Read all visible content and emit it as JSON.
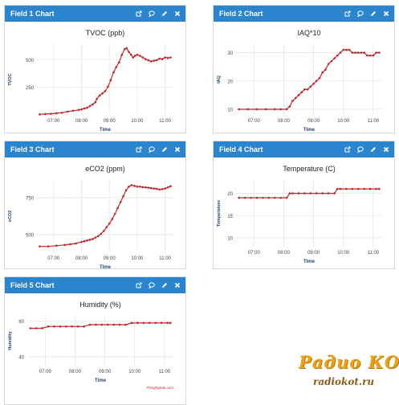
{
  "widgets": [
    {
      "header": "Field 1 Chart"
    },
    {
      "header": "Field 2 Chart"
    },
    {
      "header": "Field 3 Chart"
    },
    {
      "header": "Field 4 Chart"
    },
    {
      "header": "Field 5 Chart"
    }
  ],
  "icons": [
    "external-link-icon",
    "comment-icon",
    "pencil-icon",
    "close-icon"
  ],
  "colors": {
    "header": "#2a84ce",
    "series": "#c0262b",
    "credit": "#c0262b",
    "grid": "#e6e6e6"
  },
  "chart_data": [
    {
      "type": "line",
      "title": "TVOC (ppb)",
      "xlabel": "Time",
      "ylabel": "TVOC",
      "credit": "ThingSpeak.com",
      "ylim": [
        0,
        640
      ],
      "yticks": [
        {
          "v": 250,
          "label": "250"
        },
        {
          "v": 500,
          "label": "500"
        }
      ],
      "xlim": [
        6.4,
        11.3
      ],
      "xticks": [
        {
          "v": 7,
          "label": "07:00"
        },
        {
          "v": 8,
          "label": "08:00"
        },
        {
          "v": 9,
          "label": "09:00"
        },
        {
          "v": 10,
          "label": "10:00"
        },
        {
          "v": 11,
          "label": "11:00"
        }
      ],
      "x": [
        6.5,
        6.7,
        6.9,
        7.1,
        7.3,
        7.5,
        7.7,
        7.9,
        8.0,
        8.1,
        8.2,
        8.3,
        8.4,
        8.5,
        8.55,
        8.65,
        8.75,
        8.85,
        8.95,
        9.05,
        9.15,
        9.25,
        9.35,
        9.45,
        9.55,
        9.62,
        9.7,
        9.78,
        9.85,
        9.92,
        10.0,
        10.1,
        10.2,
        10.3,
        10.4,
        10.5,
        10.6,
        10.7,
        10.8,
        10.9,
        11.0,
        11.1,
        11.2
      ],
      "values": [
        5,
        8,
        10,
        15,
        20,
        30,
        38,
        45,
        50,
        58,
        65,
        80,
        95,
        115,
        145,
        175,
        195,
        215,
        255,
        315,
        385,
        435,
        475,
        545,
        595,
        605,
        570,
        545,
        520,
        535,
        545,
        535,
        520,
        505,
        495,
        485,
        490,
        495,
        510,
        505,
        520,
        515,
        520
      ]
    },
    {
      "type": "line",
      "title": "IAQ*10",
      "xlabel": "Time",
      "ylabel": "IAQ",
      "credit": "ThingSpeak.com",
      "ylim": [
        8,
        33
      ],
      "yticks": [
        {
          "v": 10,
          "label": "10"
        },
        {
          "v": 20,
          "label": "20"
        },
        {
          "v": 30,
          "label": "30"
        }
      ],
      "xlim": [
        6.4,
        11.3
      ],
      "xticks": [
        {
          "v": 7,
          "label": "07:00"
        },
        {
          "v": 8,
          "label": "08:00"
        },
        {
          "v": 9,
          "label": "09:00"
        },
        {
          "v": 10,
          "label": "10:00"
        },
        {
          "v": 11,
          "label": "11:00"
        }
      ],
      "x": [
        6.5,
        6.8,
        7.1,
        7.4,
        7.7,
        7.9,
        8.1,
        8.2,
        8.3,
        8.4,
        8.5,
        8.6,
        8.7,
        8.8,
        8.9,
        9.0,
        9.1,
        9.2,
        9.3,
        9.4,
        9.5,
        9.6,
        9.7,
        9.8,
        9.9,
        10.0,
        10.1,
        10.2,
        10.3,
        10.4,
        10.5,
        10.6,
        10.7,
        10.8,
        10.9,
        11.0,
        11.1,
        11.2
      ],
      "values": [
        10,
        10,
        10,
        10,
        10,
        10,
        10,
        11,
        13,
        14,
        15,
        16,
        17,
        17,
        18,
        19,
        20,
        21,
        23,
        24,
        26,
        27,
        28,
        29,
        30,
        31,
        31,
        31,
        30,
        30,
        30,
        30,
        30,
        29,
        29,
        29,
        30,
        30
      ]
    },
    {
      "type": "line",
      "title": "eCO2 (ppm)",
      "xlabel": "Time",
      "ylabel": "eCO2",
      "credit": "ThingSpeak.com",
      "ylim": [
        380,
        870
      ],
      "yticks": [
        {
          "v": 500,
          "label": "500"
        },
        {
          "v": 750,
          "label": "750"
        }
      ],
      "xlim": [
        6.4,
        11.3
      ],
      "xticks": [
        {
          "v": 7,
          "label": "07:00"
        },
        {
          "v": 8,
          "label": "08:00"
        },
        {
          "v": 9,
          "label": "09:00"
        },
        {
          "v": 10,
          "label": "10:00"
        },
        {
          "v": 11,
          "label": "11:00"
        }
      ],
      "x": [
        6.5,
        6.8,
        7.1,
        7.4,
        7.6,
        7.8,
        8.0,
        8.1,
        8.2,
        8.3,
        8.4,
        8.5,
        8.6,
        8.7,
        8.8,
        8.9,
        9.0,
        9.1,
        9.2,
        9.3,
        9.4,
        9.5,
        9.6,
        9.7,
        9.8,
        9.9,
        10.0,
        10.1,
        10.2,
        10.3,
        10.4,
        10.5,
        10.6,
        10.7,
        10.8,
        10.9,
        11.0,
        11.1,
        11.2
      ],
      "values": [
        420,
        420,
        425,
        430,
        435,
        440,
        450,
        455,
        460,
        465,
        470,
        480,
        490,
        505,
        525,
        550,
        575,
        605,
        640,
        680,
        720,
        760,
        800,
        825,
        835,
        830,
        825,
        825,
        822,
        820,
        818,
        815,
        812,
        810,
        806,
        808,
        812,
        820,
        828
      ]
    },
    {
      "type": "line",
      "title": "Temperature (C)",
      "xlabel": "Time",
      "ylabel": "Temperature",
      "credit": "",
      "ylim": [
        8,
        23
      ],
      "yticks": [
        {
          "v": 10,
          "label": "10"
        },
        {
          "v": 15,
          "label": "15"
        },
        {
          "v": 20,
          "label": "20"
        }
      ],
      "xlim": [
        6.4,
        11.3
      ],
      "xticks": [
        {
          "v": 7,
          "label": "07:00"
        },
        {
          "v": 8,
          "label": "08:00"
        },
        {
          "v": 9,
          "label": "09:00"
        },
        {
          "v": 10,
          "label": "10:00"
        },
        {
          "v": 11,
          "label": "11:00"
        }
      ],
      "x": [
        6.5,
        6.7,
        6.9,
        7.1,
        7.3,
        7.5,
        7.7,
        7.9,
        8.1,
        8.2,
        8.3,
        8.5,
        8.7,
        8.9,
        9.1,
        9.3,
        9.5,
        9.7,
        9.8,
        9.9,
        10.1,
        10.3,
        10.5,
        10.7,
        10.9,
        11.1,
        11.2
      ],
      "values": [
        19,
        19,
        19,
        19,
        19,
        19,
        19,
        19,
        19,
        20,
        20,
        20,
        20,
        20,
        20,
        20,
        20,
        20,
        21,
        21,
        21,
        21,
        21,
        21,
        21,
        21,
        21
      ]
    },
    {
      "type": "line",
      "title": "Humidity (%)",
      "xlabel": "Time",
      "ylabel": "Humidity",
      "credit": "ThingSpeak.com",
      "ylim": [
        35,
        63
      ],
      "yticks": [
        {
          "v": 40,
          "label": "40"
        },
        {
          "v": 60,
          "label": "60"
        }
      ],
      "xlim": [
        6.4,
        11.3
      ],
      "xticks": [
        {
          "v": 7,
          "label": "07:00"
        },
        {
          "v": 8,
          "label": "08:00"
        },
        {
          "v": 9,
          "label": "09:00"
        },
        {
          "v": 10,
          "label": "10:00"
        },
        {
          "v": 11,
          "label": "11:00"
        }
      ],
      "x": [
        6.5,
        6.7,
        6.9,
        7.1,
        7.3,
        7.5,
        7.7,
        7.9,
        8.1,
        8.3,
        8.5,
        8.7,
        8.9,
        9.1,
        9.3,
        9.5,
        9.7,
        9.9,
        10.1,
        10.3,
        10.5,
        10.7,
        10.9,
        11.1,
        11.2
      ],
      "values": [
        56,
        56,
        56,
        57,
        57,
        57,
        57,
        57,
        57,
        57,
        58,
        58,
        58,
        58,
        58,
        58,
        58,
        59,
        59,
        59,
        59,
        59,
        59,
        59,
        59
      ]
    }
  ],
  "watermark": {
    "top": "Радио КОТ",
    "bottom": "radiokot.ru"
  }
}
